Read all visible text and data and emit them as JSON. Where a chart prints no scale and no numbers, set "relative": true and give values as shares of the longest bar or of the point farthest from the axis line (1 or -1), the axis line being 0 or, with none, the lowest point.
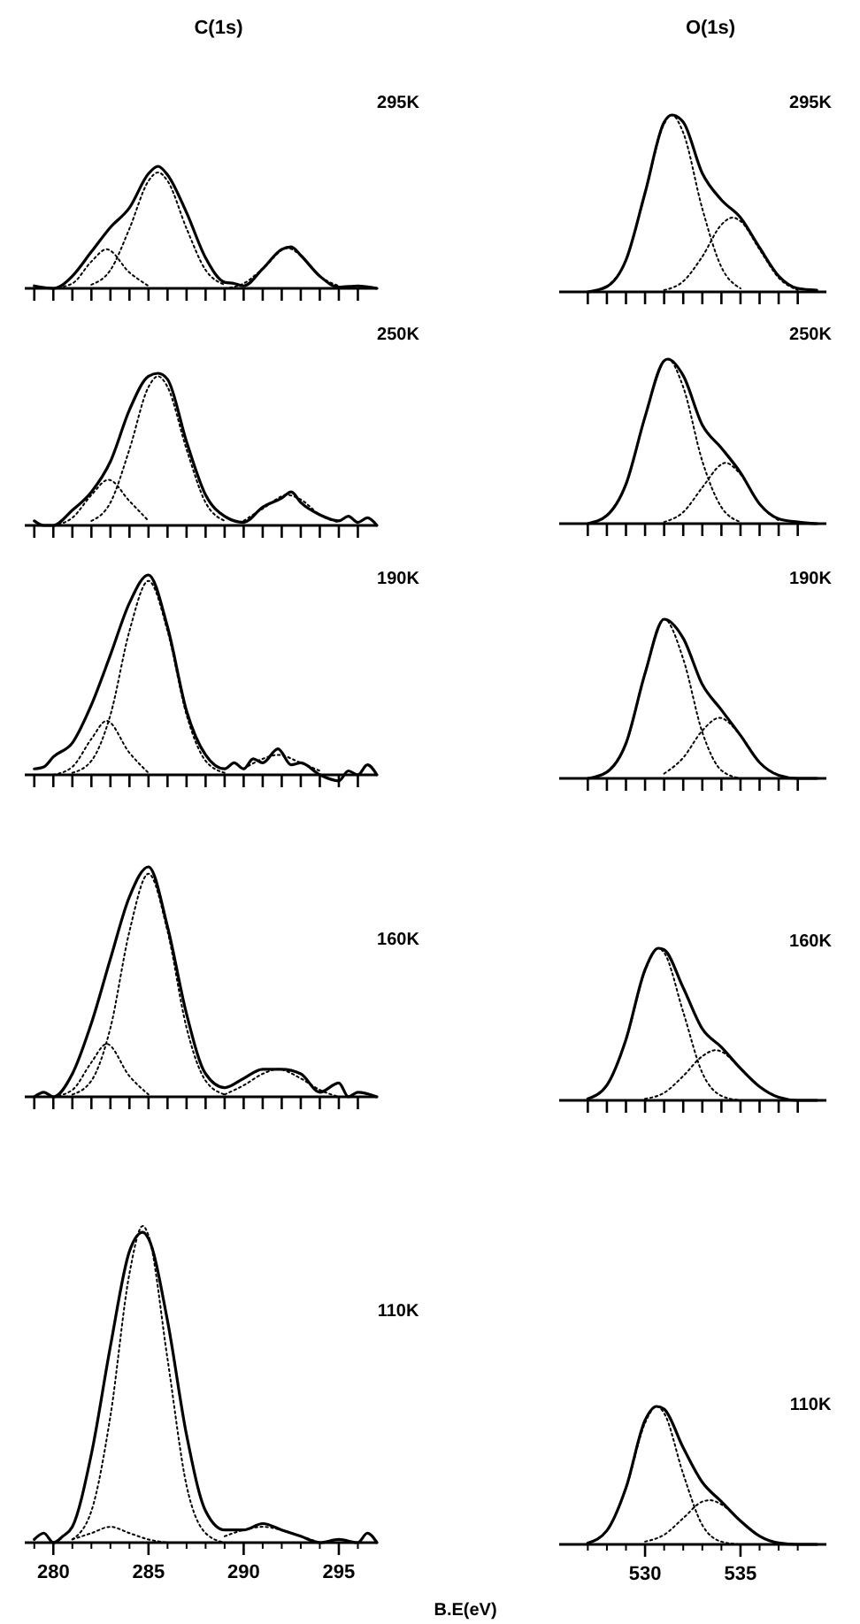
{
  "chart_data": [
    {
      "type": "line",
      "title": "C(1s)",
      "annotations": [
        "295K"
      ],
      "relative": true,
      "xlim": [
        278.5,
        297
      ],
      "xticks": [
        279,
        280,
        281,
        282,
        283,
        284,
        285,
        286,
        287,
        288,
        289,
        290,
        291,
        292,
        293,
        294,
        295,
        296
      ],
      "tick_labels": false,
      "series": [
        {
          "color": "#000000",
          "line_style": "solid",
          "x": [
            279,
            280,
            280.5,
            281,
            282,
            283,
            284,
            285,
            285.5,
            286,
            287,
            288,
            289,
            289.5,
            290,
            291,
            292,
            292.5,
            293,
            294,
            295,
            296,
            297
          ],
          "values": [
            0.02,
            0.0,
            0.03,
            0.1,
            0.3,
            0.5,
            0.66,
            0.94,
            1.0,
            0.93,
            0.62,
            0.25,
            0.05,
            0.04,
            0.02,
            0.16,
            0.32,
            0.34,
            0.27,
            0.1,
            0.01,
            0.02,
            0.0
          ]
        },
        {
          "color": "#000000",
          "line_style": "dotted",
          "x": [
            282,
            283,
            284,
            285,
            285.5,
            286,
            287,
            288,
            289
          ],
          "values": [
            0.03,
            0.15,
            0.49,
            0.88,
            0.95,
            0.88,
            0.49,
            0.15,
            0.03
          ]
        },
        {
          "color": "#000000",
          "line_style": "dotted",
          "x": [
            280,
            281,
            282,
            282.8,
            284,
            285
          ],
          "values": [
            0.0,
            0.04,
            0.22,
            0.32,
            0.13,
            0.02
          ]
        },
        {
          "color": "#000000",
          "line_style": "dotted",
          "x": [
            289,
            290,
            291,
            292.3,
            293,
            294,
            295
          ],
          "values": [
            0.0,
            0.04,
            0.16,
            0.33,
            0.27,
            0.1,
            0.02
          ]
        }
      ]
    },
    {
      "type": "line",
      "title": "O(1s)",
      "annotations": [
        "295K"
      ],
      "relative": true,
      "xlim": [
        525.5,
        539.5
      ],
      "xticks": [
        527,
        528,
        529,
        530,
        531,
        532,
        533,
        534,
        535,
        536,
        537,
        538
      ],
      "tick_labels": false,
      "series": [
        {
          "color": "#000000",
          "line_style": "solid",
          "x": [
            527,
            528,
            529,
            530,
            531,
            531.4,
            532,
            533,
            534,
            535,
            536,
            537,
            538,
            539
          ],
          "values": [
            0.0,
            0.03,
            0.18,
            0.56,
            0.96,
            1.0,
            0.96,
            0.67,
            0.52,
            0.42,
            0.25,
            0.09,
            0.02,
            0.01
          ]
        },
        {
          "color": "#000000",
          "line_style": "dotted",
          "x": [
            528,
            529,
            530,
            531,
            531.4,
            532,
            533,
            534,
            535
          ],
          "values": [
            0.03,
            0.18,
            0.56,
            0.95,
            1.0,
            0.9,
            0.47,
            0.14,
            0.02
          ]
        },
        {
          "color": "#000000",
          "line_style": "dotted",
          "x": [
            531,
            532,
            533,
            534,
            534.6,
            535,
            536,
            537,
            538
          ],
          "values": [
            0.01,
            0.06,
            0.2,
            0.38,
            0.42,
            0.4,
            0.24,
            0.08,
            0.01
          ]
        }
      ]
    },
    {
      "type": "line",
      "annotations": [
        "250K"
      ],
      "relative": true,
      "xlim": [
        278.5,
        297
      ],
      "xticks": [
        279,
        280,
        281,
        282,
        283,
        284,
        285,
        286,
        287,
        288,
        289,
        290,
        291,
        292,
        293,
        294,
        295,
        296
      ],
      "tick_labels": false,
      "series": [
        {
          "color": "#000000",
          "line_style": "solid",
          "x": [
            279,
            279.5,
            280,
            281,
            282,
            283,
            284,
            285,
            285.5,
            286,
            287,
            288,
            289,
            290,
            291,
            292,
            292.5,
            293,
            294,
            295,
            295.5,
            296,
            296.5,
            297
          ],
          "values": [
            0.03,
            0.0,
            0.0,
            0.1,
            0.22,
            0.42,
            0.76,
            0.98,
            1.0,
            0.96,
            0.55,
            0.2,
            0.06,
            0.02,
            0.12,
            0.18,
            0.22,
            0.15,
            0.07,
            0.03,
            0.06,
            0.02,
            0.05,
            0.0
          ]
        },
        {
          "color": "#000000",
          "line_style": "dotted",
          "x": [
            282,
            283,
            284,
            285,
            285.5,
            286,
            287,
            288,
            289
          ],
          "values": [
            0.03,
            0.15,
            0.5,
            0.91,
            0.98,
            0.91,
            0.5,
            0.15,
            0.03
          ]
        },
        {
          "color": "#000000",
          "line_style": "dotted",
          "x": [
            280,
            281,
            282,
            282.9,
            284,
            285
          ],
          "values": [
            0.0,
            0.05,
            0.2,
            0.3,
            0.16,
            0.03
          ]
        },
        {
          "color": "#000000",
          "line_style": "dotted",
          "x": [
            290,
            291,
            292.3,
            293,
            294,
            295
          ],
          "values": [
            0.03,
            0.11,
            0.2,
            0.17,
            0.07,
            0.02
          ]
        }
      ]
    },
    {
      "type": "line",
      "annotations": [
        "250K"
      ],
      "relative": true,
      "xlim": [
        525.5,
        539.5
      ],
      "xticks": [
        527,
        528,
        529,
        530,
        531,
        532,
        533,
        534,
        535,
        536,
        537,
        538
      ],
      "tick_labels": false,
      "series": [
        {
          "color": "#000000",
          "line_style": "solid",
          "x": [
            527,
            528,
            529,
            530,
            531,
            531.2,
            532,
            533,
            534,
            535,
            536,
            537,
            538,
            539
          ],
          "values": [
            0.0,
            0.05,
            0.24,
            0.65,
            0.99,
            1.0,
            0.9,
            0.6,
            0.46,
            0.31,
            0.12,
            0.03,
            0.01,
            0.0
          ]
        },
        {
          "color": "#000000",
          "line_style": "dotted",
          "x": [
            528,
            529,
            530,
            531,
            531.2,
            532,
            533,
            534,
            535
          ],
          "values": [
            0.05,
            0.24,
            0.65,
            0.99,
            1.0,
            0.83,
            0.38,
            0.1,
            0.01
          ]
        },
        {
          "color": "#000000",
          "line_style": "dotted",
          "x": [
            531,
            532,
            533,
            534,
            534.2,
            535,
            536,
            537
          ],
          "values": [
            0.01,
            0.07,
            0.22,
            0.36,
            0.37,
            0.3,
            0.12,
            0.02
          ]
        }
      ]
    },
    {
      "type": "line",
      "annotations": [
        "190K"
      ],
      "relative": true,
      "xlim": [
        278.5,
        297
      ],
      "xticks": [
        279,
        280,
        281,
        282,
        283,
        284,
        285,
        286,
        287,
        288,
        289,
        290,
        291,
        292,
        293,
        294,
        295,
        296
      ],
      "tick_labels": false,
      "series": [
        {
          "color": "#000000",
          "line_style": "solid",
          "x": [
            279,
            279.5,
            280,
            281,
            282,
            283,
            284,
            285,
            286,
            287,
            288,
            289,
            289.5,
            290,
            290.5,
            291,
            291.8,
            292.5,
            293,
            294,
            295,
            295.5,
            296,
            296.5,
            297
          ],
          "values": [
            0.03,
            0.04,
            0.09,
            0.16,
            0.35,
            0.6,
            0.86,
            1.0,
            0.74,
            0.32,
            0.1,
            0.03,
            0.06,
            0.03,
            0.08,
            0.06,
            0.13,
            0.05,
            0.06,
            0.0,
            -0.03,
            0.02,
            0.0,
            0.05,
            0.0
          ]
        },
        {
          "color": "#000000",
          "line_style": "dotted",
          "x": [
            281,
            282,
            283,
            284,
            285,
            286,
            287,
            288,
            289
          ],
          "values": [
            0.01,
            0.07,
            0.3,
            0.72,
            0.97,
            0.72,
            0.3,
            0.07,
            0.01
          ]
        },
        {
          "color": "#000000",
          "line_style": "dotted",
          "x": [
            280,
            281,
            282,
            282.8,
            284,
            285
          ],
          "values": [
            0.0,
            0.04,
            0.18,
            0.27,
            0.11,
            0.01
          ]
        },
        {
          "color": "#000000",
          "line_style": "dotted",
          "x": [
            290,
            291,
            291.8,
            293,
            294
          ],
          "values": [
            0.03,
            0.08,
            0.1,
            0.06,
            0.02
          ]
        }
      ]
    },
    {
      "type": "line",
      "annotations": [
        "190K"
      ],
      "relative": true,
      "xlim": [
        525.5,
        539.5
      ],
      "xticks": [
        527,
        528,
        529,
        530,
        531,
        532,
        533,
        534,
        535,
        536,
        537,
        538
      ],
      "tick_labels": false,
      "series": [
        {
          "color": "#000000",
          "line_style": "solid",
          "x": [
            527,
            528,
            529,
            530,
            531,
            532,
            533,
            534,
            535,
            536,
            537,
            538,
            539
          ],
          "values": [
            0.0,
            0.04,
            0.22,
            0.66,
            1.0,
            0.88,
            0.59,
            0.43,
            0.27,
            0.1,
            0.02,
            0.0,
            0.0
          ]
        },
        {
          "color": "#000000",
          "line_style": "dotted",
          "x": [
            528,
            529,
            530,
            531,
            532,
            533,
            534,
            535
          ],
          "values": [
            0.04,
            0.22,
            0.66,
            1.0,
            0.75,
            0.29,
            0.05,
            0.0
          ]
        },
        {
          "color": "#000000",
          "line_style": "dotted",
          "x": [
            531,
            532,
            533,
            533.9,
            535,
            536,
            537
          ],
          "values": [
            0.03,
            0.13,
            0.3,
            0.38,
            0.27,
            0.1,
            0.02
          ]
        }
      ]
    },
    {
      "type": "line",
      "annotations": [
        "160K"
      ],
      "relative": true,
      "xlim": [
        278.5,
        297
      ],
      "xticks": [
        279,
        280,
        281,
        282,
        283,
        284,
        285,
        286,
        287,
        288,
        289,
        290,
        291,
        292,
        293,
        294,
        295,
        296
      ],
      "tick_labels": false,
      "series": [
        {
          "color": "#000000",
          "line_style": "solid",
          "x": [
            279,
            279.5,
            280,
            281,
            282,
            283,
            284,
            285,
            286,
            287,
            288,
            289,
            290,
            291,
            292,
            293,
            294,
            295,
            295.5,
            296,
            297
          ],
          "values": [
            0.0,
            0.02,
            0.0,
            0.1,
            0.32,
            0.6,
            0.87,
            1.0,
            0.74,
            0.36,
            0.1,
            0.04,
            0.08,
            0.12,
            0.12,
            0.1,
            0.02,
            0.06,
            0.0,
            0.02,
            0.0
          ]
        },
        {
          "color": "#000000",
          "line_style": "dotted",
          "x": [
            281,
            282,
            283,
            284,
            285,
            286,
            287,
            288,
            289
          ],
          "values": [
            0.01,
            0.07,
            0.3,
            0.72,
            0.97,
            0.72,
            0.3,
            0.07,
            0.01
          ]
        },
        {
          "color": "#000000",
          "line_style": "dotted",
          "x": [
            280,
            281,
            282,
            282.8,
            284,
            285
          ],
          "values": [
            0.0,
            0.03,
            0.15,
            0.23,
            0.09,
            0.01
          ]
        },
        {
          "color": "#000000",
          "line_style": "dotted",
          "x": [
            289,
            290,
            291,
            291.8,
            293,
            294,
            295
          ],
          "values": [
            0.01,
            0.05,
            0.1,
            0.12,
            0.08,
            0.03,
            0.0
          ]
        }
      ]
    },
    {
      "type": "line",
      "annotations": [
        "160K"
      ],
      "relative": true,
      "xlim": [
        525.5,
        539.5
      ],
      "xticks": [
        527,
        528,
        529,
        530,
        531,
        532,
        533,
        534,
        535,
        536,
        537,
        538
      ],
      "tick_labels": false,
      "series": [
        {
          "color": "#000000",
          "line_style": "solid",
          "x": [
            527,
            528,
            529,
            530,
            530.7,
            531,
            532,
            533,
            534,
            535,
            536,
            537,
            538,
            539
          ],
          "values": [
            0.01,
            0.1,
            0.4,
            0.86,
            1.0,
            0.99,
            0.74,
            0.47,
            0.35,
            0.21,
            0.09,
            0.02,
            0.0,
            0.0
          ]
        },
        {
          "color": "#000000",
          "line_style": "dotted",
          "x": [
            527,
            528,
            529,
            530,
            530.7,
            531,
            532,
            533,
            534,
            535
          ],
          "values": [
            0.01,
            0.1,
            0.4,
            0.85,
            1.0,
            0.97,
            0.58,
            0.18,
            0.03,
            0.0
          ]
        },
        {
          "color": "#000000",
          "line_style": "dotted",
          "x": [
            530,
            531,
            532,
            533,
            533.7,
            534,
            535,
            536,
            537
          ],
          "values": [
            0.01,
            0.05,
            0.16,
            0.29,
            0.33,
            0.32,
            0.21,
            0.09,
            0.02
          ]
        }
      ]
    },
    {
      "type": "line",
      "annotations": [
        "110K"
      ],
      "xlabel": "B.E(eV)",
      "relative": true,
      "xlim": [
        278.5,
        297
      ],
      "xticks": [
        {
          "value": 279,
          "label": null
        },
        280,
        {
          "value": 281,
          "label": null
        },
        {
          "value": 282,
          "label": null
        },
        {
          "value": 283,
          "label": null
        },
        {
          "value": 284,
          "label": null
        },
        285,
        {
          "value": 286,
          "label": null
        },
        {
          "value": 287,
          "label": null
        },
        {
          "value": 288,
          "label": null
        },
        {
          "value": 289,
          "label": null
        },
        290,
        {
          "value": 291,
          "label": null
        },
        {
          "value": 292,
          "label": null
        },
        {
          "value": 293,
          "label": null
        },
        {
          "value": 294,
          "label": null
        },
        295,
        {
          "value": 296,
          "label": null
        }
      ],
      "series": [
        {
          "color": "#000000",
          "line_style": "solid",
          "x": [
            279,
            279.5,
            280,
            280.5,
            281,
            282,
            283,
            284,
            284.7,
            285,
            286,
            287,
            288,
            289,
            290,
            291,
            292,
            293,
            294,
            295,
            296,
            296.5,
            297
          ],
          "values": [
            0.01,
            0.03,
            0.0,
            0.02,
            0.05,
            0.28,
            0.62,
            0.92,
            0.98,
            0.96,
            0.7,
            0.34,
            0.1,
            0.04,
            0.04,
            0.06,
            0.04,
            0.02,
            0.0,
            0.01,
            0.0,
            0.03,
            0.0
          ]
        },
        {
          "color": "#000000",
          "line_style": "dotted",
          "x": [
            281,
            282,
            283,
            284,
            284.7,
            285,
            286,
            287,
            288,
            289
          ],
          "values": [
            0.01,
            0.1,
            0.4,
            0.85,
            1.0,
            0.97,
            0.58,
            0.18,
            0.03,
            0.0
          ]
        },
        {
          "color": "#000000",
          "line_style": "dotted",
          "x": [
            281,
            282,
            283,
            284,
            285,
            286
          ],
          "values": [
            0.01,
            0.03,
            0.05,
            0.03,
            0.01,
            0.0
          ]
        },
        {
          "color": "#000000",
          "line_style": "dotted",
          "x": [
            289,
            290,
            291,
            292,
            293,
            294
          ],
          "values": [
            0.02,
            0.04,
            0.05,
            0.04,
            0.02,
            0.0
          ]
        }
      ]
    },
    {
      "type": "line",
      "annotations": [
        "110K"
      ],
      "relative": true,
      "xlim": [
        525.5,
        539.5
      ],
      "xticks": [
        {
          "value": 527,
          "label": null
        },
        {
          "value": 528,
          "label": null
        },
        {
          "value": 529,
          "label": null
        },
        530,
        {
          "value": 531,
          "label": null
        },
        {
          "value": 532,
          "label": null
        },
        {
          "value": 533,
          "label": null
        },
        {
          "value": 534,
          "label": null
        },
        535,
        {
          "value": 536,
          "label": null
        },
        {
          "value": 537,
          "label": null
        },
        {
          "value": 538,
          "label": null
        }
      ],
      "series": [
        {
          "color": "#000000",
          "line_style": "solid",
          "x": [
            527,
            528,
            529,
            530,
            530.6,
            531,
            532,
            533,
            534,
            535,
            536,
            537,
            538,
            539
          ],
          "values": [
            0.01,
            0.1,
            0.41,
            0.9,
            1.0,
            0.98,
            0.7,
            0.45,
            0.31,
            0.17,
            0.06,
            0.01,
            0.0,
            0.0
          ]
        },
        {
          "color": "#000000",
          "line_style": "dotted",
          "x": [
            527,
            528,
            529,
            530,
            530.6,
            531,
            532,
            533,
            534,
            535
          ],
          "values": [
            0.01,
            0.1,
            0.41,
            0.88,
            1.0,
            0.95,
            0.51,
            0.14,
            0.02,
            0.0
          ]
        },
        {
          "color": "#000000",
          "line_style": "dotted",
          "x": [
            530,
            531,
            532,
            533,
            533.4,
            534,
            535,
            536,
            537
          ],
          "values": [
            0.02,
            0.07,
            0.19,
            0.31,
            0.32,
            0.29,
            0.17,
            0.06,
            0.01
          ]
        }
      ]
    }
  ]
}
